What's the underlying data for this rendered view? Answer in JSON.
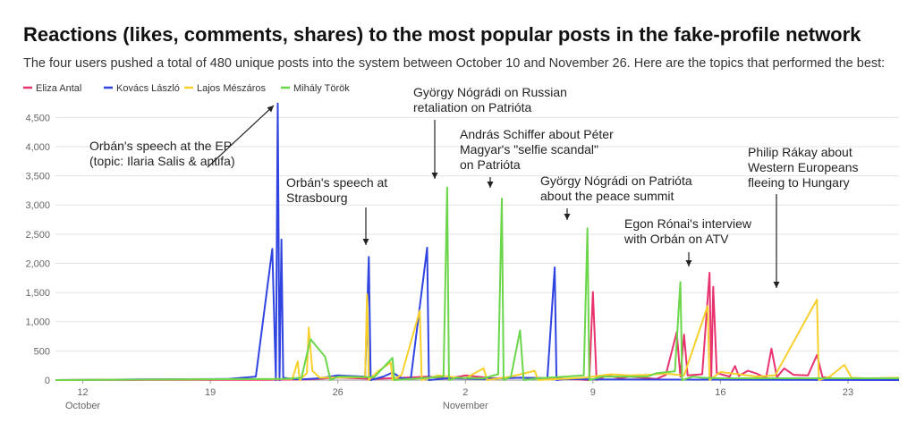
{
  "chart_data": {
    "type": "line",
    "title": "Reactions (likes, comments, shares) to the most popular posts in the fake-profile network",
    "subtitle": "The four users pushed a total of 480 unique posts into the system between October 10 and November 26. Here are the topics that performed the best:",
    "ylim": [
      0,
      4750
    ],
    "xlim": [
      10.5,
      56.8
    ],
    "y_ticks": [
      0,
      500,
      1000,
      1500,
      2000,
      2500,
      3000,
      3500,
      4000,
      4500
    ],
    "y_tick_labels": [
      "0",
      "500",
      "1,000",
      "1,500",
      "2,000",
      "2,500",
      "3,000",
      "3,500",
      "4,000",
      "4,500"
    ],
    "x_ticks": [
      {
        "day": 12,
        "label": "12"
      },
      {
        "day": 19,
        "label": "19"
      },
      {
        "day": 26,
        "label": "26"
      },
      {
        "day": 33,
        "label": "2"
      },
      {
        "day": 40,
        "label": "9"
      },
      {
        "day": 47,
        "label": "16"
      },
      {
        "day": 54,
        "label": "23"
      }
    ],
    "month_labels": [
      {
        "day": 12,
        "label": "October"
      },
      {
        "day": 33,
        "label": "November"
      }
    ],
    "series": [
      {
        "name": "Eliza Antal",
        "color": "#e8336f",
        "points": [
          [
            10.5,
            0
          ],
          [
            22,
            5
          ],
          [
            24.5,
            10
          ],
          [
            26,
            45
          ],
          [
            28,
            20
          ],
          [
            31,
            60
          ],
          [
            32,
            25
          ],
          [
            33,
            80
          ],
          [
            34.5,
            30
          ],
          [
            36,
            40
          ],
          [
            38,
            30
          ],
          [
            39.8,
            0
          ],
          [
            40,
            1510
          ],
          [
            40.2,
            0
          ],
          [
            40.8,
            80
          ],
          [
            41.5,
            30
          ],
          [
            42,
            60
          ],
          [
            43.5,
            20
          ],
          [
            44,
            90
          ],
          [
            44.6,
            820
          ],
          [
            44.8,
            60
          ],
          [
            45,
            780
          ],
          [
            45.2,
            80
          ],
          [
            46,
            100
          ],
          [
            46.4,
            1840
          ],
          [
            46.5,
            60
          ],
          [
            46.6,
            1600
          ],
          [
            46.8,
            120
          ],
          [
            47.5,
            60
          ],
          [
            47.8,
            240
          ],
          [
            48,
            70
          ],
          [
            48.5,
            160
          ],
          [
            49,
            110
          ],
          [
            49.5,
            30
          ],
          [
            49.8,
            540
          ],
          [
            50.1,
            50
          ],
          [
            50.5,
            200
          ],
          [
            51,
            90
          ],
          [
            51.8,
            80
          ],
          [
            52.3,
            430
          ],
          [
            52.6,
            50
          ],
          [
            53.5,
            20
          ],
          [
            54,
            30
          ],
          [
            56.8,
            20
          ]
        ]
      },
      {
        "name": "Kovács László",
        "color": "#2f44e0",
        "points": [
          [
            10.5,
            0
          ],
          [
            15,
            10
          ],
          [
            18,
            15
          ],
          [
            20,
            20
          ],
          [
            21.5,
            60
          ],
          [
            22.4,
            2250
          ],
          [
            22.6,
            0
          ],
          [
            22.7,
            4740
          ],
          [
            22.8,
            0
          ],
          [
            22.9,
            2410
          ],
          [
            23,
            40
          ],
          [
            23.5,
            20
          ],
          [
            24,
            10
          ],
          [
            25,
            30
          ],
          [
            26,
            80
          ],
          [
            27.5,
            60
          ],
          [
            27.7,
            2110
          ],
          [
            27.8,
            0
          ],
          [
            28.5,
            60
          ],
          [
            29,
            130
          ],
          [
            29.5,
            30
          ],
          [
            30,
            20
          ],
          [
            30.9,
            2270
          ],
          [
            31,
            0
          ],
          [
            32,
            30
          ],
          [
            34,
            20
          ],
          [
            36,
            40
          ],
          [
            37.5,
            30
          ],
          [
            37.9,
            1930
          ],
          [
            38,
            0
          ],
          [
            38.5,
            20
          ],
          [
            40,
            10
          ],
          [
            56.8,
            0
          ]
        ]
      },
      {
        "name": "Lajos Mészáros",
        "color": "#f7d02e",
        "points": [
          [
            10.5,
            0
          ],
          [
            23.5,
            20
          ],
          [
            23.8,
            320
          ],
          [
            23.9,
            0
          ],
          [
            24.3,
            120
          ],
          [
            24.4,
            900
          ],
          [
            24.6,
            160
          ],
          [
            25,
            40
          ],
          [
            27.5,
            50
          ],
          [
            27.6,
            1470
          ],
          [
            27.7,
            0
          ],
          [
            28.2,
            150
          ],
          [
            28.9,
            300
          ],
          [
            29,
            0
          ],
          [
            29.5,
            90
          ],
          [
            30.5,
            1190
          ],
          [
            30.6,
            0
          ],
          [
            31.5,
            80
          ],
          [
            33,
            30
          ],
          [
            34,
            200
          ],
          [
            34.2,
            0
          ],
          [
            35.5,
            60
          ],
          [
            36.8,
            160
          ],
          [
            37,
            0
          ],
          [
            39.5,
            40
          ],
          [
            41,
            100
          ],
          [
            42,
            80
          ],
          [
            43,
            90
          ],
          [
            44,
            110
          ],
          [
            45,
            80
          ],
          [
            46.3,
            1270
          ],
          [
            46.4,
            0
          ],
          [
            47,
            140
          ],
          [
            49,
            60
          ],
          [
            50,
            80
          ],
          [
            52.3,
            1380
          ],
          [
            52.4,
            0
          ],
          [
            53,
            60
          ],
          [
            53.8,
            260
          ],
          [
            54.2,
            40
          ],
          [
            55,
            30
          ],
          [
            56.8,
            40
          ]
        ]
      },
      {
        "name": "Mihály Török",
        "color": "#6bd64a",
        "points": [
          [
            10.5,
            0
          ],
          [
            23,
            20
          ],
          [
            24,
            40
          ],
          [
            24.5,
            700
          ],
          [
            25.3,
            400
          ],
          [
            25.6,
            0
          ],
          [
            26,
            60
          ],
          [
            28,
            50
          ],
          [
            29,
            380
          ],
          [
            29.1,
            0
          ],
          [
            30,
            20
          ],
          [
            31.8,
            60
          ],
          [
            32,
            3300
          ],
          [
            32.1,
            0
          ],
          [
            32.5,
            40
          ],
          [
            34,
            30
          ],
          [
            34.8,
            100
          ],
          [
            35,
            3110
          ],
          [
            35.1,
            0
          ],
          [
            35.5,
            60
          ],
          [
            36,
            850
          ],
          [
            36.2,
            0
          ],
          [
            37,
            30
          ],
          [
            39.5,
            80
          ],
          [
            39.7,
            2600
          ],
          [
            39.8,
            0
          ],
          [
            40.5,
            60
          ],
          [
            43,
            60
          ],
          [
            43.5,
            120
          ],
          [
            44.5,
            150
          ],
          [
            44.8,
            1680
          ],
          [
            44.9,
            0
          ],
          [
            45.5,
            60
          ],
          [
            46,
            40
          ],
          [
            47,
            30
          ],
          [
            56.8,
            30
          ]
        ]
      }
    ],
    "annotations": [
      {
        "lines": [
          "Orbán's speech at the EP",
          "(topic: Ilaria Salis & antifa)"
        ]
      },
      {
        "lines": [
          "Orbán's speech at",
          "Strasbourg"
        ]
      },
      {
        "lines": [
          "György Nógrádi on Russian",
          "retaliation on Patrióta"
        ]
      },
      {
        "lines": [
          "András Schiffer about Péter",
          "Magyar's \"selfie scandal\"",
          "on Patrióta"
        ]
      },
      {
        "lines": [
          "György Nógrádi on Patrióta",
          "about the peace summit"
        ]
      },
      {
        "lines": [
          "Egon Rónai's interview",
          "with Orbán on ATV"
        ]
      },
      {
        "lines": [
          "Philip Rákay about",
          "Western Europeans",
          "fleeing to Hungary"
        ]
      }
    ]
  }
}
